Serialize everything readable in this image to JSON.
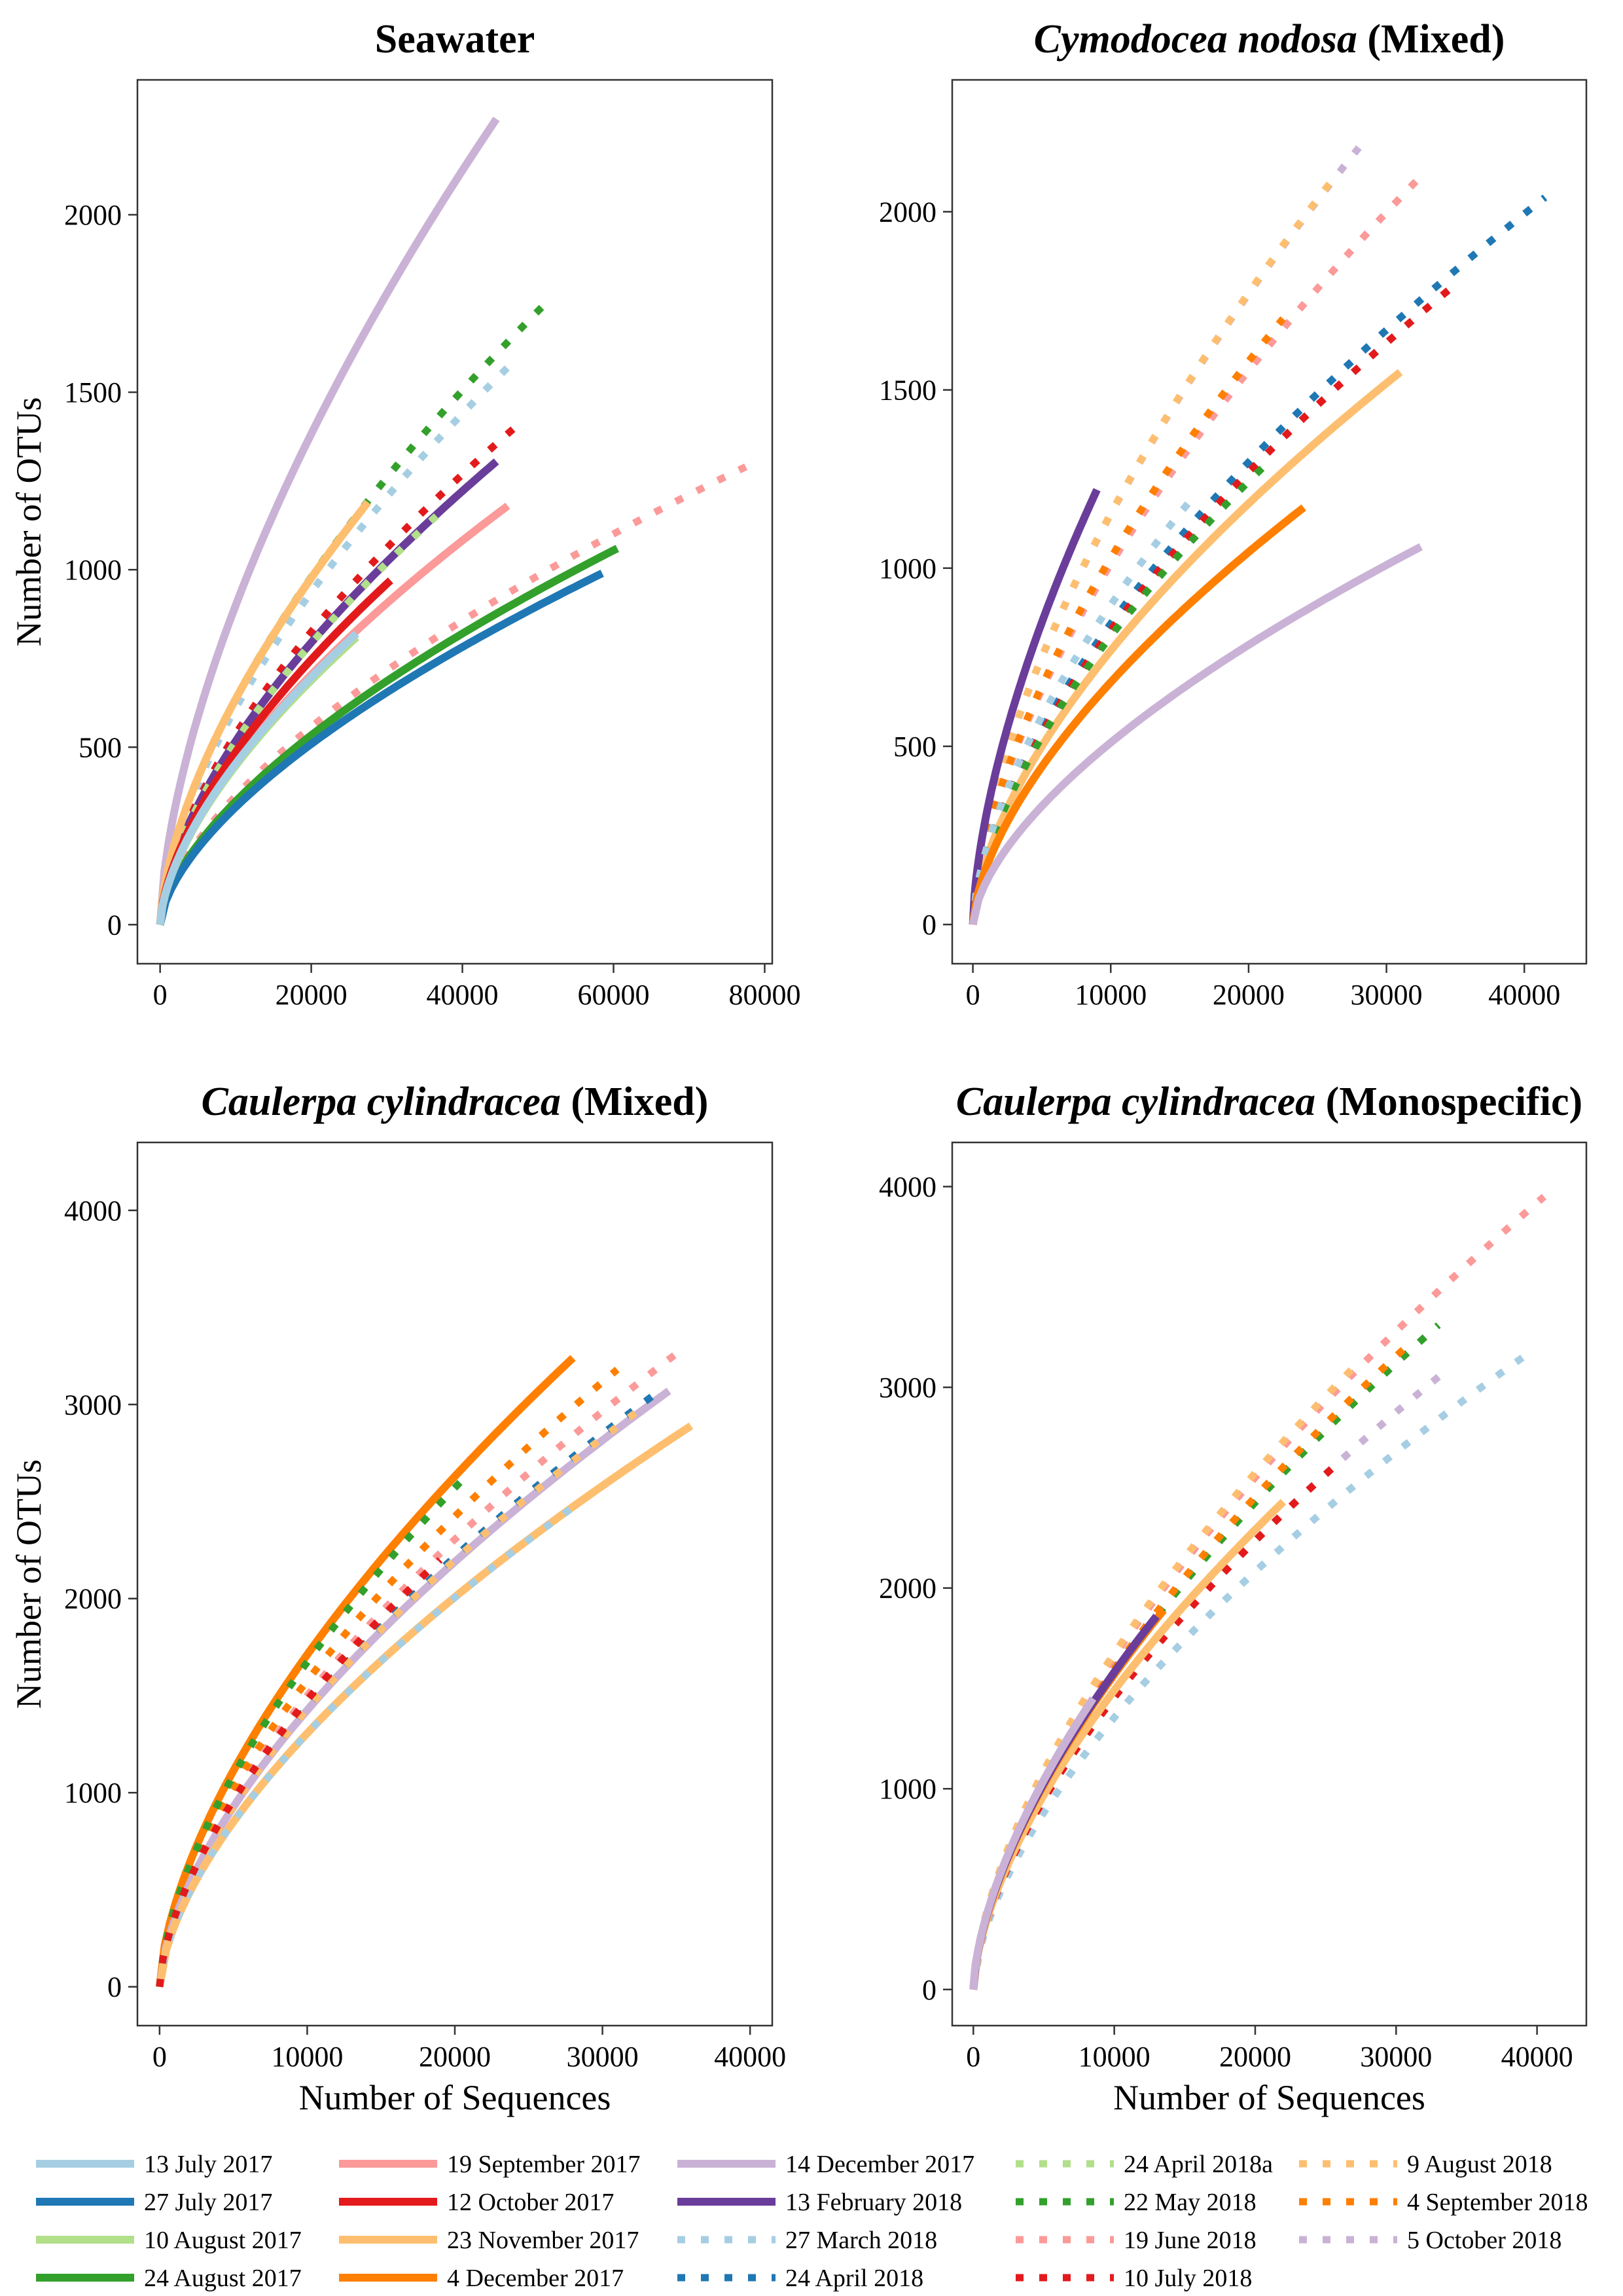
{
  "legend": [
    {
      "key": "jul13_17",
      "label": "13 July 2017",
      "color": "#a6cee3",
      "dash": false
    },
    {
      "key": "jul27_17",
      "label": "27 July 2017",
      "color": "#1f78b4",
      "dash": false
    },
    {
      "key": "aug10_17",
      "label": "10 August 2017",
      "color": "#b2df8a",
      "dash": false
    },
    {
      "key": "aug24_17",
      "label": "24 August 2017",
      "color": "#33a02c",
      "dash": false
    },
    {
      "key": "sep19_17",
      "label": "19 September 2017",
      "color": "#fb9a99",
      "dash": false
    },
    {
      "key": "oct12_17",
      "label": "12 October 2017",
      "color": "#e31a1c",
      "dash": false
    },
    {
      "key": "nov23_17",
      "label": "23 November 2017",
      "color": "#fdbf6f",
      "dash": false
    },
    {
      "key": "dec4_17",
      "label": "4 December 2017",
      "color": "#ff7f00",
      "dash": false
    },
    {
      "key": "dec14_17",
      "label": "14 December 2017",
      "color": "#cab2d6",
      "dash": false
    },
    {
      "key": "feb13_18",
      "label": "13 February 2018",
      "color": "#6a3d9a",
      "dash": false
    },
    {
      "key": "mar27_18",
      "label": "27 March 2018",
      "color": "#a6cee3",
      "dash": true
    },
    {
      "key": "apr24_18",
      "label": "24 April 2018",
      "color": "#1f78b4",
      "dash": true
    },
    {
      "key": "apr24_18a",
      "label": "24 April 2018a",
      "color": "#b2df8a",
      "dash": true
    },
    {
      "key": "may22_18",
      "label": "22 May 2018",
      "color": "#33a02c",
      "dash": true
    },
    {
      "key": "jun19_18",
      "label": "19 June 2018",
      "color": "#fb9a99",
      "dash": true
    },
    {
      "key": "jul10_18",
      "label": "10 July 2018",
      "color": "#e31a1c",
      "dash": true
    },
    {
      "key": "aug9_18",
      "label": "9 August 2018",
      "color": "#fdbf6f",
      "dash": true
    },
    {
      "key": "sep4_18",
      "label": "4 September 2018",
      "color": "#ff7f00",
      "dash": true
    },
    {
      "key": "oct5_18",
      "label": "5 October 2018",
      "color": "#cab2d6",
      "dash": true
    }
  ],
  "chart_data": [
    {
      "type": "line",
      "title": "Seawater",
      "title_italic": "",
      "title_rest": "Seawater",
      "xlabel": "",
      "ylabel": "Number of OTUs",
      "xlim": [
        -3000,
        81000
      ],
      "ylim": [
        -110,
        2380
      ],
      "xticks": [
        0,
        20000,
        40000,
        60000,
        80000
      ],
      "yticks": [
        0,
        500,
        1000,
        1500,
        2000
      ],
      "series": [
        {
          "key": "dec14_17",
          "xmax": 44500,
          "ymax": 2270
        },
        {
          "key": "may22_18",
          "xmax": 51000,
          "ymax": 1750
        },
        {
          "key": "mar27_18",
          "xmax": 46000,
          "ymax": 1570
        },
        {
          "key": "jul10_18",
          "xmax": 48000,
          "ymax": 1420
        },
        {
          "key": "feb13_18",
          "xmax": 44500,
          "ymax": 1305
        },
        {
          "key": "jun19_18",
          "xmax": 77500,
          "ymax": 1290
        },
        {
          "key": "apr24_18a",
          "xmax": 37000,
          "ymax": 1160
        },
        {
          "key": "nov23_17",
          "xmax": 27500,
          "ymax": 1190
        },
        {
          "key": "sep19_17",
          "xmax": 46000,
          "ymax": 1180
        },
        {
          "key": "aug24_17",
          "xmax": 60500,
          "ymax": 1060
        },
        {
          "key": "jul27_17",
          "xmax": 58500,
          "ymax": 990
        },
        {
          "key": "oct12_17",
          "xmax": 30500,
          "ymax": 970
        },
        {
          "key": "aug10_17",
          "xmax": 26000,
          "ymax": 810
        },
        {
          "key": "jul13_17",
          "xmax": 26000,
          "ymax": 820
        }
      ]
    },
    {
      "type": "line",
      "title": "Cymodocea nodosa (Mixed)",
      "title_italic": "Cymodocea nodosa",
      "title_rest": " (Mixed)",
      "xlabel": "",
      "ylabel": "",
      "xlim": [
        -1500,
        44500
      ],
      "ylim": [
        -110,
        2370
      ],
      "xticks": [
        0,
        10000,
        20000,
        30000,
        40000
      ],
      "yticks": [
        0,
        500,
        1000,
        1500,
        2000
      ],
      "series": [
        {
          "key": "oct5_18",
          "xmax": 28000,
          "ymax": 2180
        },
        {
          "key": "aug9_18",
          "xmax": 26500,
          "ymax": 2110
        },
        {
          "key": "jun19_18",
          "xmax": 32500,
          "ymax": 2100
        },
        {
          "key": "apr24_18",
          "xmax": 41500,
          "ymax": 2040
        },
        {
          "key": "jul10_18",
          "xmax": 34500,
          "ymax": 1780
        },
        {
          "key": "sep4_18",
          "xmax": 22500,
          "ymax": 1700
        },
        {
          "key": "nov23_17",
          "xmax": 31000,
          "ymax": 1550
        },
        {
          "key": "may22_18",
          "xmax": 21500,
          "ymax": 1300
        },
        {
          "key": "feb13_18",
          "xmax": 9000,
          "ymax": 1220
        },
        {
          "key": "mar27_18",
          "xmax": 16000,
          "ymax": 1200
        },
        {
          "key": "dec4_17",
          "xmax": 24000,
          "ymax": 1170
        },
        {
          "key": "dec14_17",
          "xmax": 32500,
          "ymax": 1060
        }
      ]
    },
    {
      "type": "line",
      "title": "Caulerpa cylindracea (Mixed)",
      "title_italic": "Caulerpa cylindracea",
      "title_rest": " (Mixed)",
      "xlabel": "Number of Sequences",
      "ylabel": "Number of OTUs",
      "xlim": [
        -1500,
        41500
      ],
      "ylim": [
        -200,
        4350
      ],
      "xticks": [
        0,
        10000,
        20000,
        30000,
        40000
      ],
      "yticks": [
        0,
        1000,
        2000,
        3000,
        4000
      ],
      "series": [
        {
          "key": "jun19_18",
          "xmax": 35500,
          "ymax": 3290
        },
        {
          "key": "dec4_17",
          "xmax": 28000,
          "ymax": 3240
        },
        {
          "key": "sep4_18",
          "xmax": 31000,
          "ymax": 3180
        },
        {
          "key": "dec14_17",
          "xmax": 34500,
          "ymax": 3070
        },
        {
          "key": "apr24_18",
          "xmax": 33500,
          "ymax": 3050
        },
        {
          "key": "aug9_18",
          "xmax": 33000,
          "ymax": 3000
        },
        {
          "key": "nov23_17",
          "xmax": 36000,
          "ymax": 2890
        },
        {
          "key": "may22_18",
          "xmax": 21000,
          "ymax": 2650
        },
        {
          "key": "mar27_18",
          "xmax": 28000,
          "ymax": 2470
        },
        {
          "key": "jul10_18",
          "xmax": 19000,
          "ymax": 2200
        }
      ]
    },
    {
      "type": "line",
      "title": "Caulerpa cylindracea (Monospecific)",
      "title_italic": "Caulerpa cylindracea",
      "title_rest": " (Monospecific)",
      "xlabel": "Number of Sequences",
      "ylabel": "",
      "xlim": [
        -1500,
        43500
      ],
      "ylim": [
        -180,
        4220
      ],
      "xticks": [
        0,
        10000,
        20000,
        30000,
        40000
      ],
      "yticks": [
        0,
        1000,
        2000,
        3000,
        4000
      ],
      "series": [
        {
          "key": "jun19_18",
          "xmax": 40500,
          "ymax": 3950
        },
        {
          "key": "may22_18",
          "xmax": 33000,
          "ymax": 3310
        },
        {
          "key": "sep4_18",
          "xmax": 31000,
          "ymax": 3220
        },
        {
          "key": "mar27_18",
          "xmax": 39000,
          "ymax": 3150
        },
        {
          "key": "oct5_18",
          "xmax": 33500,
          "ymax": 3080
        },
        {
          "key": "aug9_18",
          "xmax": 27000,
          "ymax": 3100
        },
        {
          "key": "jul10_18",
          "xmax": 26000,
          "ymax": 2630
        },
        {
          "key": "nov23_17",
          "xmax": 22000,
          "ymax": 2430
        },
        {
          "key": "dec4_17",
          "xmax": 13500,
          "ymax": 1890
        },
        {
          "key": "feb13_18",
          "xmax": 13000,
          "ymax": 1860
        },
        {
          "key": "dec14_17",
          "xmax": 8500,
          "ymax": 1450
        }
      ]
    }
  ]
}
